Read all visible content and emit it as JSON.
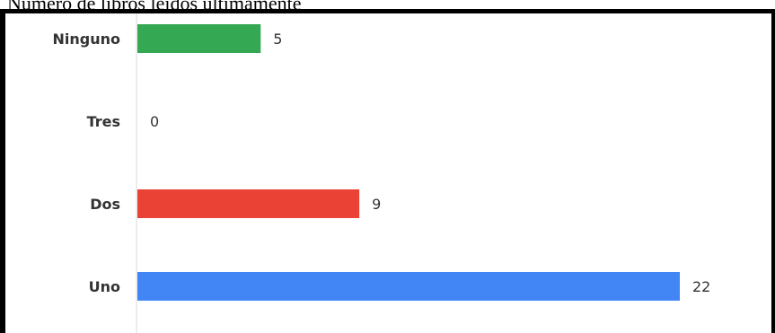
{
  "chart_data": {
    "type": "bar",
    "orientation": "horizontal",
    "title": "Número de libros leídos últimamente",
    "categories": [
      "Ninguno",
      "Tres",
      "Dos",
      "Uno"
    ],
    "values": [
      5,
      0,
      9,
      22
    ],
    "colors": [
      "#34a853",
      "#fbbc05",
      "#ea4335",
      "#4285f4"
    ],
    "xlim": [
      0,
      22
    ],
    "grid": false,
    "legend": "none"
  }
}
